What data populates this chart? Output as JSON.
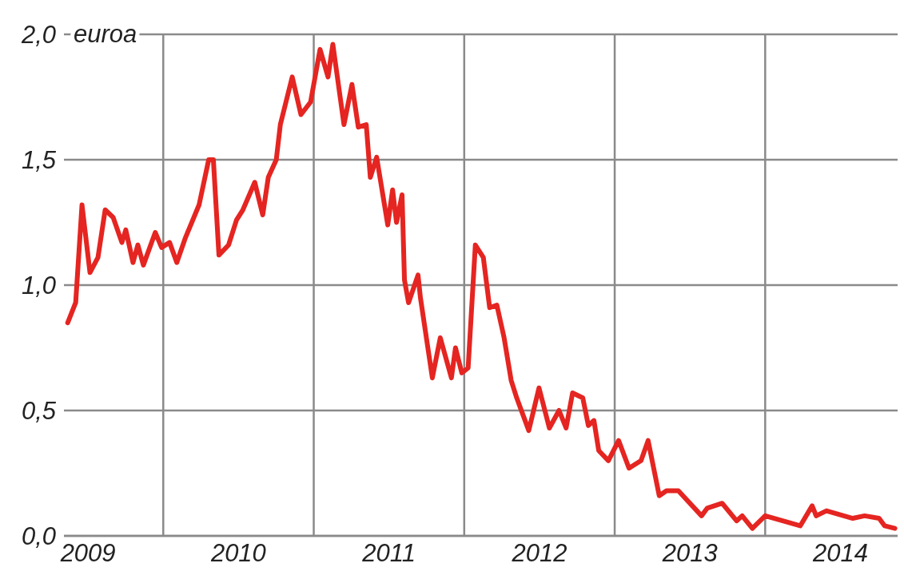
{
  "chart_data": {
    "type": "line",
    "ylabel": "euroa",
    "x": [
      2009.365,
      2009.418,
      2009.46,
      2009.513,
      2009.566,
      2009.614,
      2009.667,
      2009.725,
      2009.751,
      2009.799,
      2009.831,
      2009.868,
      2009.947,
      2009.989,
      2010.042,
      2010.09,
      2010.148,
      2010.238,
      2010.302,
      2010.333,
      2010.37,
      2010.434,
      2010.487,
      2010.529,
      2010.608,
      2010.661,
      2010.698,
      2010.751,
      2010.778,
      2010.857,
      2010.915,
      2010.979,
      2011.042,
      2011.095,
      2011.127,
      2011.201,
      2011.254,
      2011.296,
      2011.349,
      2011.376,
      2011.418,
      2011.492,
      2011.524,
      2011.55,
      2011.587,
      2011.603,
      2011.63,
      2011.693,
      2011.709,
      2011.788,
      2011.841,
      2011.915,
      2011.942,
      2011.984,
      2012.026,
      2012.074,
      2012.127,
      2012.169,
      2012.217,
      2012.265,
      2012.312,
      2012.349,
      2012.429,
      2012.497,
      2012.566,
      2012.63,
      2012.677,
      2012.72,
      2012.788,
      2012.825,
      2012.862,
      2012.894,
      2012.958,
      2013.026,
      2013.095,
      2013.175,
      2013.222,
      2013.296,
      2013.344,
      2013.423,
      2013.577,
      2013.614,
      2013.714,
      2013.81,
      2013.847,
      2013.915,
      2014.0,
      2014.233,
      2014.312,
      2014.339,
      2014.407,
      2014.582,
      2014.661,
      2014.757,
      2014.794,
      2014.862
    ],
    "series": [
      {
        "color": "#e52521",
        "values": [
          0.85,
          0.93,
          1.32,
          1.05,
          1.11,
          1.3,
          1.27,
          1.17,
          1.22,
          1.09,
          1.16,
          1.08,
          1.21,
          1.15,
          1.17,
          1.09,
          1.19,
          1.32,
          1.5,
          1.5,
          1.12,
          1.16,
          1.26,
          1.3,
          1.41,
          1.28,
          1.43,
          1.5,
          1.64,
          1.83,
          1.68,
          1.73,
          1.94,
          1.83,
          1.96,
          1.64,
          1.8,
          1.63,
          1.64,
          1.43,
          1.51,
          1.24,
          1.38,
          1.25,
          1.36,
          1.02,
          0.93,
          1.04,
          0.95,
          0.63,
          0.79,
          0.63,
          0.75,
          0.65,
          0.67,
          1.16,
          1.11,
          0.91,
          0.92,
          0.79,
          0.62,
          0.55,
          0.42,
          0.59,
          0.43,
          0.5,
          0.43,
          0.57,
          0.55,
          0.44,
          0.46,
          0.34,
          0.3,
          0.38,
          0.27,
          0.3,
          0.38,
          0.16,
          0.18,
          0.18,
          0.08,
          0.11,
          0.13,
          0.06,
          0.08,
          0.03,
          0.08,
          0.04,
          0.12,
          0.08,
          0.1,
          0.07,
          0.08,
          0.07,
          0.04,
          0.03
        ]
      }
    ],
    "xlim": [
      2009.34,
      2014.88
    ],
    "xticks": [
      {
        "value": 2009.5,
        "label": "2009"
      },
      {
        "value": 2010,
        "label": null
      },
      {
        "value": 2010.5,
        "label": "2010"
      },
      {
        "value": 2011,
        "label": null
      },
      {
        "value": 2011.5,
        "label": "2011"
      },
      {
        "value": 2012,
        "label": null
      },
      {
        "value": 2012.5,
        "label": "2012"
      },
      {
        "value": 2013,
        "label": null
      },
      {
        "value": 2013.5,
        "label": "2013"
      },
      {
        "value": 2014,
        "label": null
      },
      {
        "value": 2014.5,
        "label": "2014"
      }
    ],
    "ylim": [
      0,
      2
    ],
    "yticks": [
      {
        "value": 0,
        "label": "0,0"
      },
      {
        "value": 0.5,
        "label": "0,5"
      },
      {
        "value": 1,
        "label": "1,0"
      },
      {
        "value": 1.5,
        "label": "1,5"
      },
      {
        "value": 2,
        "label": "2,0"
      }
    ],
    "grid": true,
    "legend": false,
    "marker": "none",
    "line_style": "solid"
  }
}
